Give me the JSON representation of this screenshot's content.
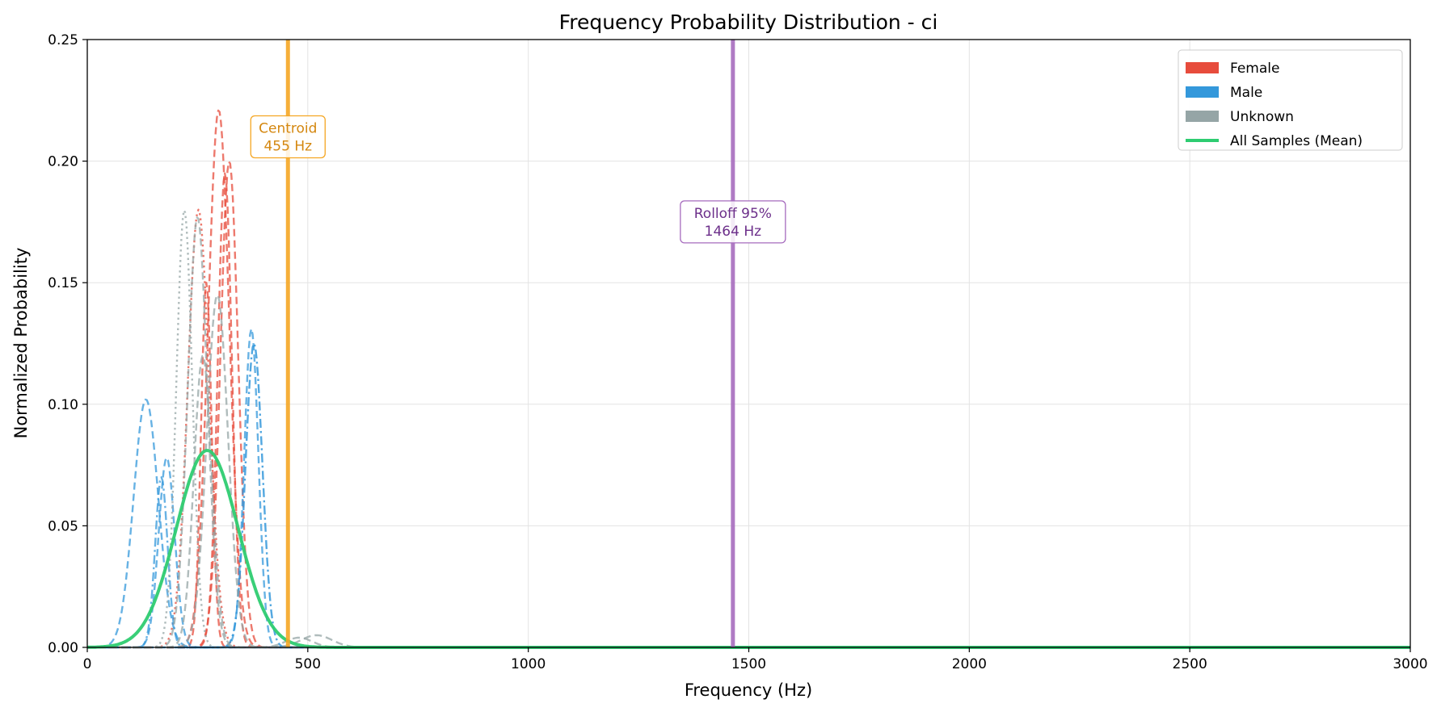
{
  "chart_data": {
    "type": "line",
    "title": "Frequency Probability Distribution - ci",
    "xlabel": "Frequency (Hz)",
    "ylabel": "Normalized Probability",
    "xlim": [
      0,
      3000
    ],
    "ylim": [
      0,
      0.25
    ],
    "xticks": [
      0,
      500,
      1000,
      1500,
      2000,
      2500,
      3000
    ],
    "xtick_labels": [
      "0",
      "500",
      "1000",
      "1500",
      "2000",
      "2500",
      "3000"
    ],
    "yticks": [
      0,
      0.05,
      0.1,
      0.15,
      0.2,
      0.25
    ],
    "ytick_labels": [
      "0.00",
      "0.05",
      "0.10",
      "0.15",
      "0.20",
      "0.25"
    ],
    "grid": true,
    "legend_position": "top-right",
    "legend": [
      {
        "label": "Female",
        "color": "#e74c3c",
        "kind": "patch"
      },
      {
        "label": "Male",
        "color": "#3498db",
        "kind": "patch"
      },
      {
        "label": "Unknown",
        "color": "#95a5a6",
        "kind": "patch"
      },
      {
        "label": "All Samples (Mean)",
        "color": "#2ecc71",
        "kind": "line"
      }
    ],
    "vlines": [
      {
        "x": 455,
        "color": "#f5a623",
        "label_lines": [
          "Centroid",
          "455 Hz"
        ],
        "label_y": 0.21,
        "text_color": "#d4870f"
      },
      {
        "x": 1464,
        "color": "#a66bbe",
        "label_lines": [
          "Rolloff 95%",
          "1464 Hz"
        ],
        "label_y": 0.175,
        "text_color": "#6c2f8a"
      }
    ],
    "series": [
      {
        "group": "Female",
        "color": "#e74c3c",
        "style": "dashed",
        "peaks": [
          [
            298,
            0.221,
            24
          ]
        ],
        "opacity": 0.75
      },
      {
        "group": "Female",
        "color": "#e74c3c",
        "style": "dashed",
        "peaks": [
          [
            322,
            0.2,
            20
          ]
        ],
        "opacity": 0.75
      },
      {
        "group": "Female",
        "color": "#e74c3c",
        "style": "dashed",
        "peaks": [
          [
            312,
            0.195,
            16
          ]
        ],
        "opacity": 0.75
      },
      {
        "group": "Female",
        "color": "#e74c3c",
        "style": "dotted",
        "peaks": [
          [
            252,
            0.18,
            24
          ]
        ],
        "opacity": 0.75
      },
      {
        "group": "Female",
        "color": "#e74c3c",
        "style": "dashed",
        "peaks": [
          [
            270,
            0.15,
            12
          ]
        ],
        "opacity": 0.75
      },
      {
        "group": "Male",
        "color": "#3498db",
        "style": "dashed",
        "peaks": [
          [
            133,
            0.102,
            28
          ]
        ],
        "opacity": 0.75
      },
      {
        "group": "Male",
        "color": "#3498db",
        "style": "dashed",
        "peaks": [
          [
            180,
            0.078,
            18
          ]
        ],
        "opacity": 0.75
      },
      {
        "group": "Male",
        "color": "#3498db",
        "style": "dashdot",
        "peaks": [
          [
            168,
            0.07,
            14
          ]
        ],
        "opacity": 0.75
      },
      {
        "group": "Male",
        "color": "#3498db",
        "style": "dashed",
        "peaks": [
          [
            372,
            0.131,
            16
          ]
        ],
        "opacity": 0.75
      },
      {
        "group": "Male",
        "color": "#3498db",
        "style": "dashdot",
        "peaks": [
          [
            378,
            0.125,
            19
          ]
        ],
        "opacity": 0.85
      },
      {
        "group": "Unknown",
        "color": "#95a5a6",
        "style": "dotted",
        "peaks": [
          [
            220,
            0.18,
            18
          ]
        ],
        "opacity": 0.75
      },
      {
        "group": "Unknown",
        "color": "#95a5a6",
        "style": "dashed",
        "peaks": [
          [
            250,
            0.177,
            22
          ],
          [
            520,
            0.005,
            35
          ]
        ],
        "opacity": 0.75
      },
      {
        "group": "Unknown",
        "color": "#95a5a6",
        "style": "dashed",
        "peaks": [
          [
            295,
            0.145,
            24
          ],
          [
            480,
            0.004,
            30
          ]
        ],
        "opacity": 0.75
      },
      {
        "group": "Unknown",
        "color": "#95a5a6",
        "style": "dashed",
        "peaks": [
          [
            262,
            0.12,
            20
          ]
        ],
        "opacity": 0.75
      },
      {
        "group": "All Samples (Mean)",
        "color": "#2ecc71",
        "style": "solid",
        "peaks": [
          [
            272,
            0.081,
            70
          ]
        ],
        "opacity": 0.95,
        "width": 4
      }
    ]
  }
}
